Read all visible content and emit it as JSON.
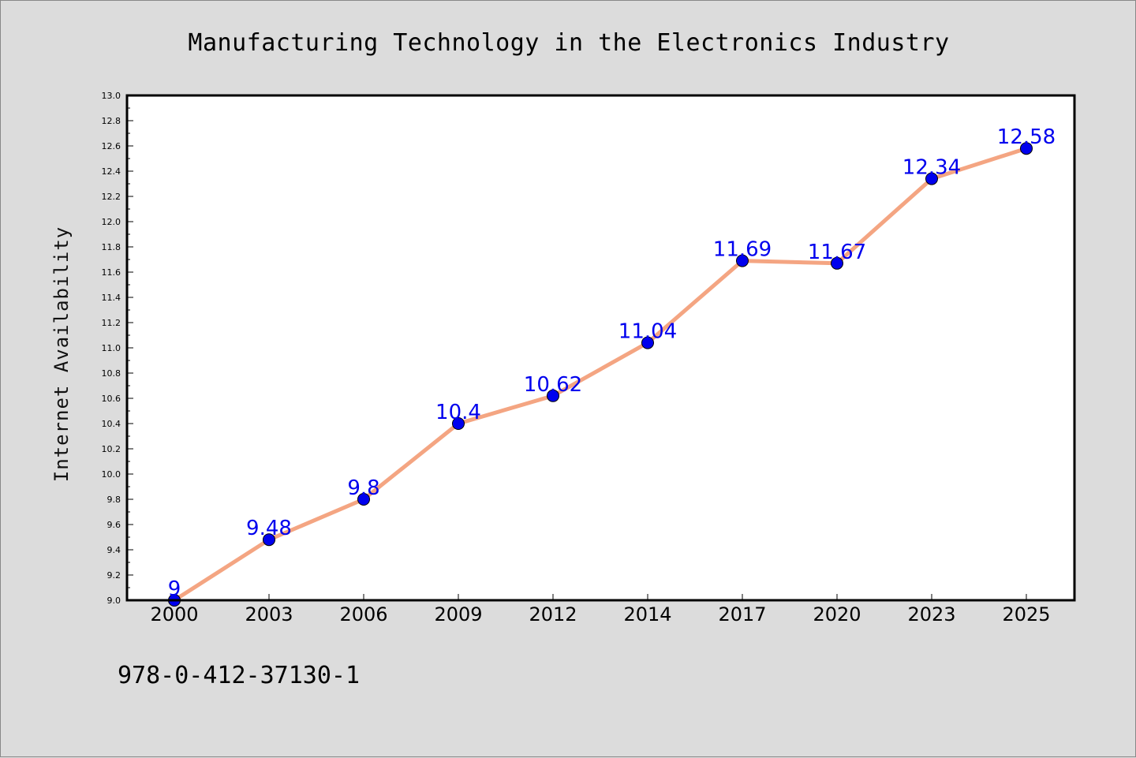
{
  "chart_data": {
    "type": "line",
    "title": "Manufacturing Technology in the Electronics Industry",
    "xlabel": "",
    "ylabel": "Internet Availability",
    "categories": [
      "2000",
      "2003",
      "2006",
      "2009",
      "2012",
      "2014",
      "2017",
      "2020",
      "2023",
      "2025"
    ],
    "series": [
      {
        "values": [
          9,
          9.48,
          9.8,
          10.4,
          10.62,
          11.04,
          11.69,
          11.67,
          12.34,
          12.58
        ],
        "data_labels": [
          "9",
          "9.48",
          "9.8",
          "10.4",
          "10.62",
          "11.04",
          "11.69",
          "11.67",
          "12.34",
          "12.58"
        ],
        "line_color": "#f4a582",
        "marker_color": "#0000ee"
      }
    ],
    "ylim": [
      9.0,
      13.0
    ],
    "yticks": [
      "9.0",
      "9.2",
      "9.4",
      "9.6",
      "9.8",
      "10.0",
      "10.2",
      "10.4",
      "10.6",
      "10.8",
      "11.0",
      "11.2",
      "11.4",
      "11.6",
      "11.8",
      "12.0",
      "12.2",
      "12.4",
      "12.6",
      "12.8",
      "13.0"
    ],
    "grid": false,
    "legend": "none"
  },
  "footer_text": "978-0-412-37130-1",
  "colors": {
    "background": "#dcdcdc",
    "plot_background": "#ffffff",
    "line": "#f4a582",
    "marker": "#0000ee",
    "data_label": "#0000ee"
  }
}
